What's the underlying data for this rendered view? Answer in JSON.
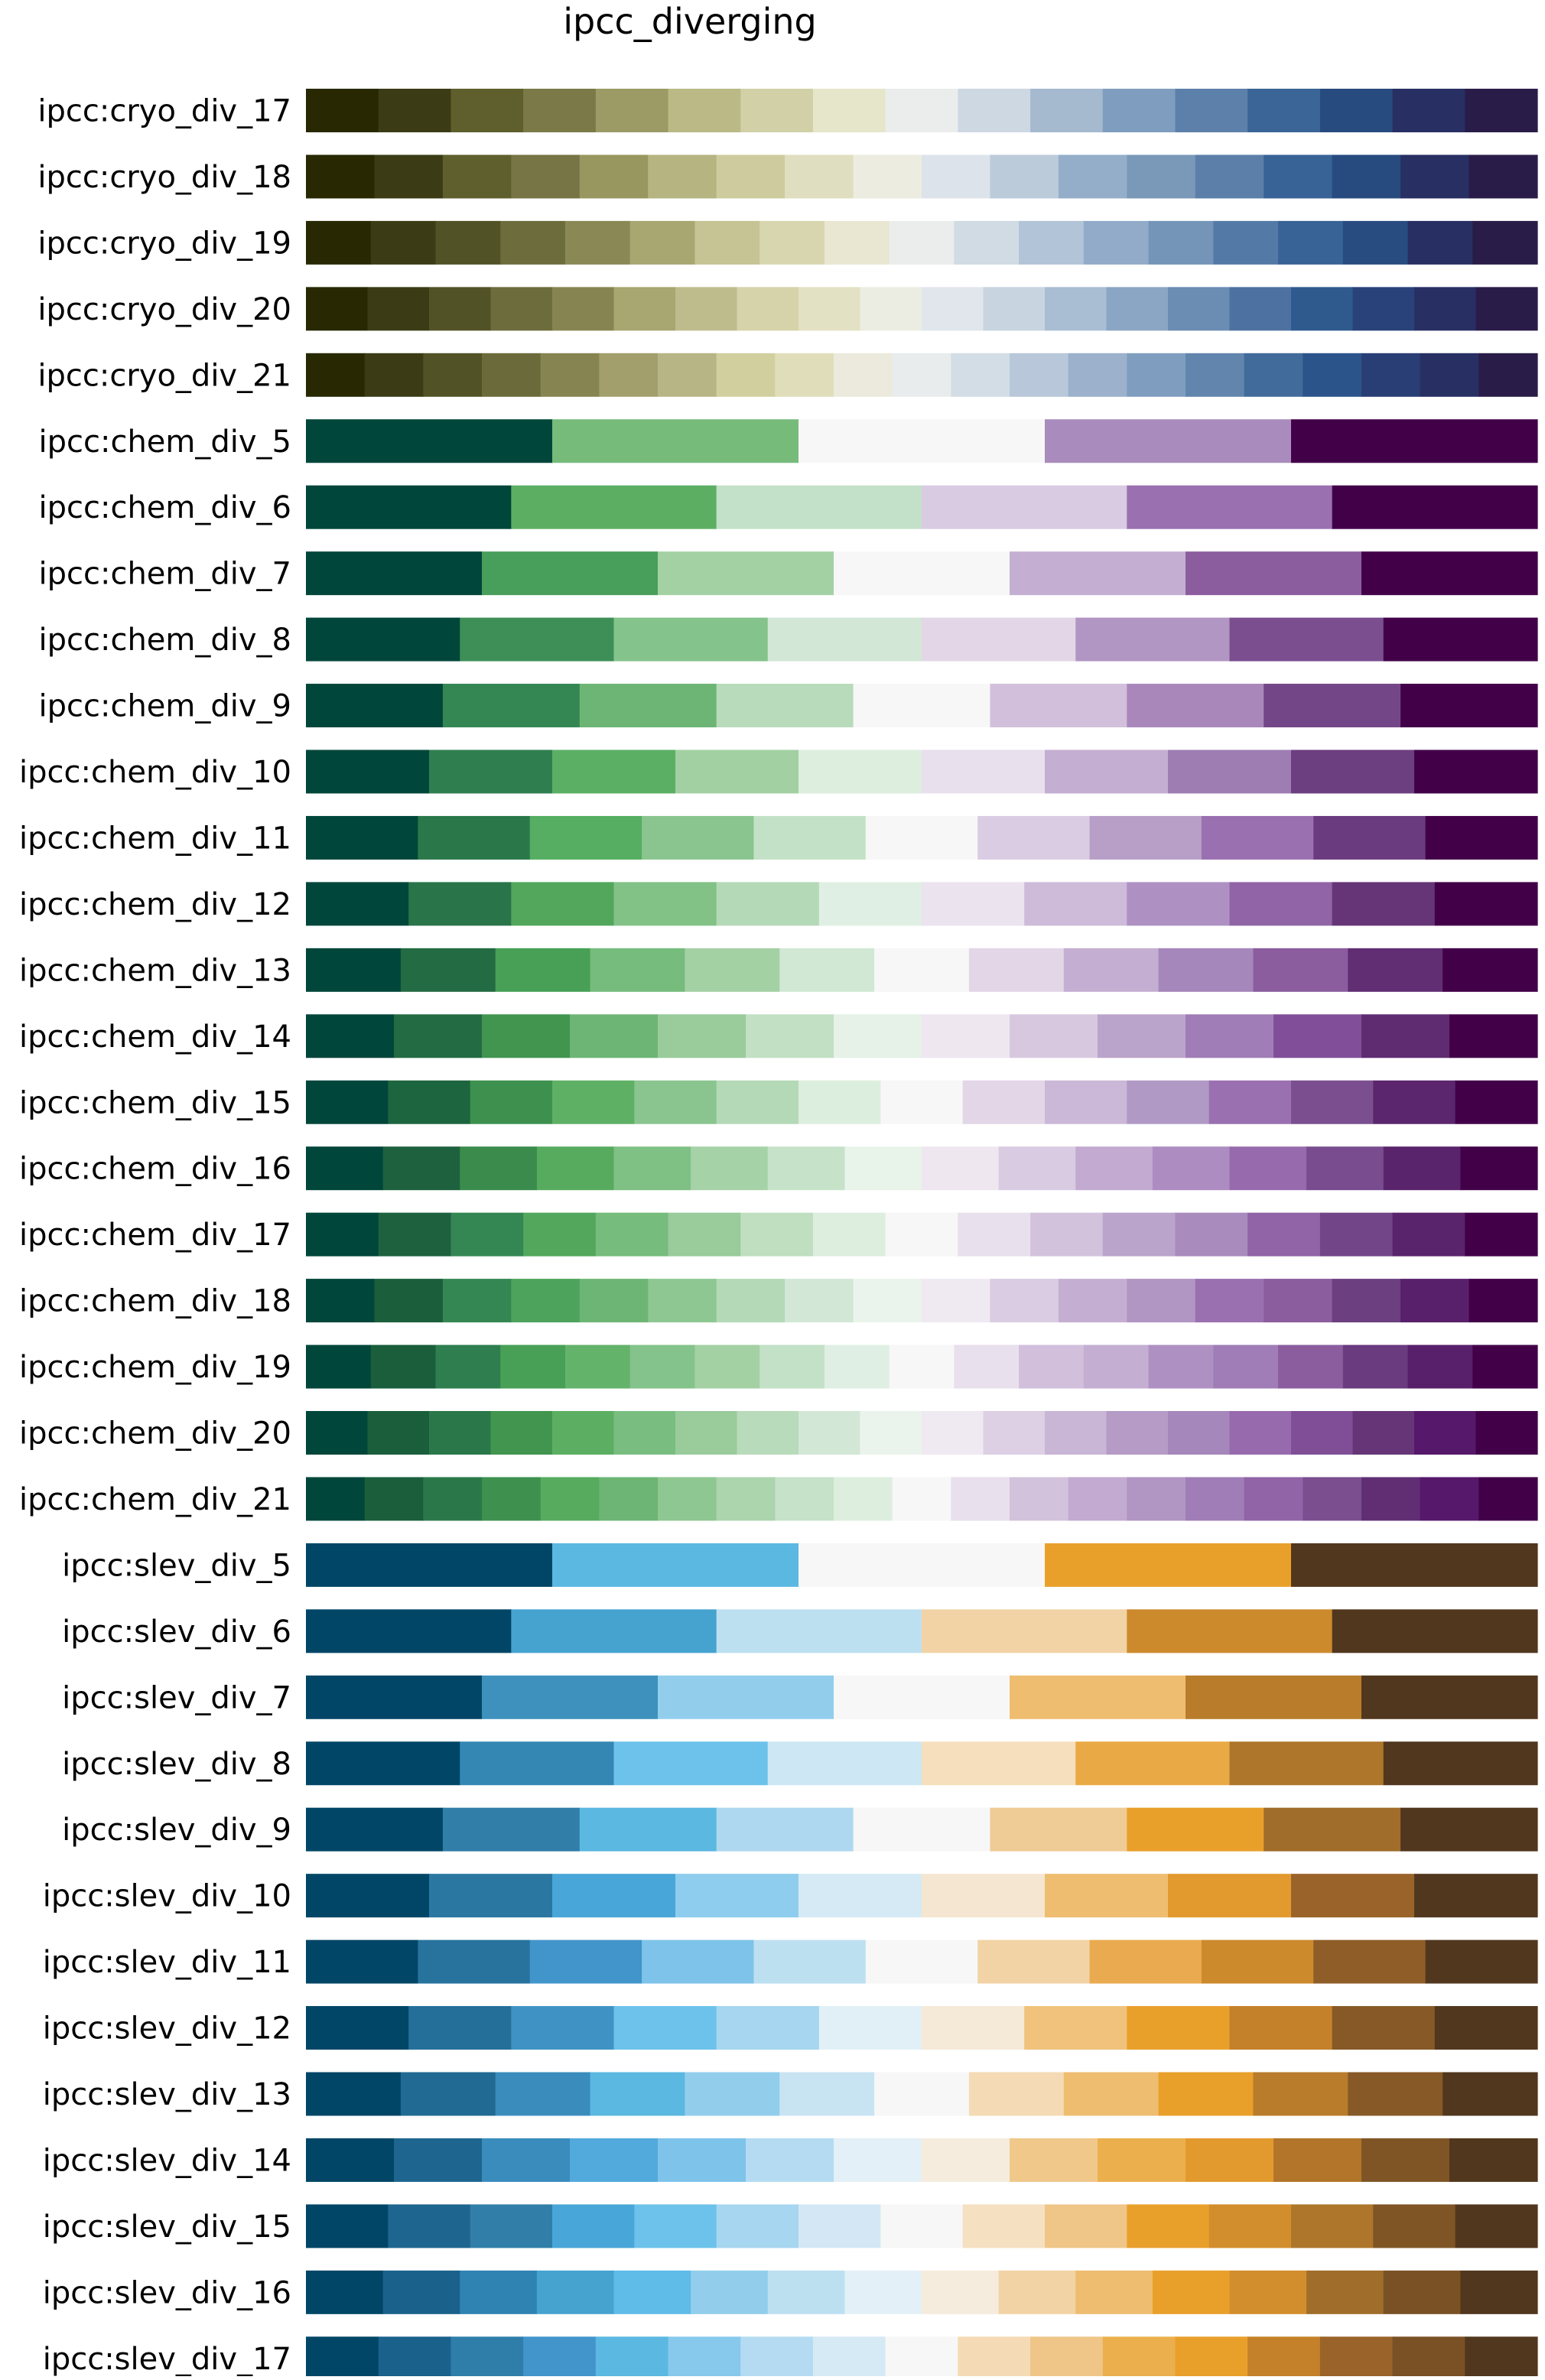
{
  "chart_data": {
    "type": "table",
    "title": "ipcc_diverging",
    "palettes": [
      {
        "name": "ipcc:cryo_div_17",
        "colors": [
          "#282902",
          "#3b3c15",
          "#5f5f2d",
          "#7b7947",
          "#9c9b66",
          "#bbb986",
          "#d2d0a7",
          "#e6e6cb",
          "#eaedec",
          "#cdd8e3",
          "#a5b9cf",
          "#7f9ebf",
          "#5c80a9",
          "#3a6596",
          "#284b7f",
          "#282f63",
          "#2a1c48"
        ]
      },
      {
        "name": "ipcc:cryo_div_18",
        "colors": [
          "#282902",
          "#3b3c15",
          "#5f5f2d",
          "#777445",
          "#999760",
          "#b6b481",
          "#cecc9f",
          "#e0dec0",
          "#ecede0",
          "#dde3ea",
          "#bccbda",
          "#94aec9",
          "#7a99b9",
          "#5b7fa8",
          "#386396",
          "#284b7f",
          "#282f63",
          "#2a1c48"
        ]
      },
      {
        "name": "ipcc:cryo_div_19",
        "colors": [
          "#282902",
          "#3b3c15",
          "#525227",
          "#6d6c3c",
          "#8a8956",
          "#a8a671",
          "#c6c394",
          "#d8d6ae",
          "#e9e7d1",
          "#eaedec",
          "#d0dbe4",
          "#b2c4d7",
          "#91abc8",
          "#7595b8",
          "#537aa6",
          "#386396",
          "#294c80",
          "#282f63",
          "#2a1c48"
        ]
      },
      {
        "name": "ipcc:cryo_div_20",
        "colors": [
          "#282902",
          "#3b3c15",
          "#525227",
          "#6d6c3c",
          "#868552",
          "#a8a671",
          "#bebc8c",
          "#d6d3aa",
          "#e3e1c3",
          "#ebede3",
          "#e1e6ec",
          "#c8d4e0",
          "#a9bdd3",
          "#8ba6c4",
          "#6b8cb3",
          "#4d72a2",
          "#2f5a8e",
          "#294279",
          "#282f63",
          "#2a1c48"
        ]
      },
      {
        "name": "ipcc:cryo_div_21",
        "colors": [
          "#282902",
          "#3b3c15",
          "#525227",
          "#6b6a3a",
          "#868552",
          "#a29f6c",
          "#b7b585",
          "#d2cf9f",
          "#e0deba",
          "#ebeadc",
          "#e9ecec",
          "#d3dde5",
          "#b8c8da",
          "#9bb1cc",
          "#7f9ebf",
          "#6285ad",
          "#416b9a",
          "#2b548b",
          "#293e74",
          "#282f63",
          "#2a1c48"
        ]
      },
      {
        "name": "ipcc:chem_div_5",
        "colors": [
          "#00463a",
          "#77bb7b",
          "#f7f7f7",
          "#a98bbd",
          "#420049"
        ]
      },
      {
        "name": "ipcc:chem_div_6",
        "colors": [
          "#00463a",
          "#5caf62",
          "#c3e0c8",
          "#d9cbe1",
          "#9a70b0",
          "#420049"
        ]
      },
      {
        "name": "ipcc:chem_div_7",
        "colors": [
          "#00463a",
          "#489e5b",
          "#a4d1a4",
          "#f7f7f7",
          "#c4afd2",
          "#8b5d9e",
          "#420049"
        ]
      },
      {
        "name": "ipcc:chem_div_8",
        "colors": [
          "#00463a",
          "#3d8f57",
          "#84c38b",
          "#d3e7d6",
          "#e3d7e7",
          "#b195c2",
          "#7a4e8f",
          "#420049"
        ]
      },
      {
        "name": "ipcc:chem_div_9",
        "colors": [
          "#00463a",
          "#348653",
          "#6cb574",
          "#b8dbbb",
          "#f7f7f7",
          "#d2bfdb",
          "#a987bb",
          "#734787",
          "#420049"
        ]
      },
      {
        "name": "ipcc:chem_div_10",
        "colors": [
          "#00463a",
          "#2f7e4f",
          "#5baf64",
          "#a2d0a2",
          "#ddeedf",
          "#e8e0ec",
          "#c4aed2",
          "#9e7db3",
          "#6c3f80",
          "#420049"
        ]
      },
      {
        "name": "ipcc:chem_div_11",
        "colors": [
          "#00463a",
          "#2a784a",
          "#55ae61",
          "#8ac58f",
          "#c3e1c6",
          "#f7f7f7",
          "#dacce2",
          "#b79fc8",
          "#9a70b0",
          "#6a3b7e",
          "#420049"
        ]
      },
      {
        "name": "ipcc:chem_div_12",
        "colors": [
          "#00463a",
          "#297449",
          "#52a75c",
          "#82c287",
          "#b4d9b7",
          "#e0efe3",
          "#ebe3ee",
          "#cdbbd9",
          "#ae91c2",
          "#9064a6",
          "#653577",
          "#420049"
        ]
      },
      {
        "name": "ipcc:chem_div_13",
        "colors": [
          "#00463a",
          "#236b43",
          "#47a056",
          "#76bc7c",
          "#a4d1a4",
          "#d1e8d4",
          "#f7f7f7",
          "#e2d6e7",
          "#c4afd2",
          "#a587bb",
          "#8b5d9e",
          "#612e74",
          "#420049"
        ]
      },
      {
        "name": "ipcc:chem_div_14",
        "colors": [
          "#00463a",
          "#236b43",
          "#41954f",
          "#6db575",
          "#99cb9b",
          "#c2e0c3",
          "#e6f2e8",
          "#eee7f0",
          "#d7c8df",
          "#bba4cb",
          "#a07db6",
          "#814f99",
          "#5f2b71",
          "#420049"
        ]
      },
      {
        "name": "ipcc:chem_div_15",
        "colors": [
          "#00463a",
          "#1d653f",
          "#3d904e",
          "#5eb064",
          "#8ac58f",
          "#b4d9b7",
          "#dceedd",
          "#f7f7f7",
          "#e2d6e7",
          "#cbb7d7",
          "#b199c5",
          "#9a70b0",
          "#7a4e8f",
          "#5b266d",
          "#420049"
        ]
      },
      {
        "name": "ipcc:chem_div_16",
        "colors": [
          "#00463a",
          "#1d613e",
          "#3a8b4c",
          "#57ab5f",
          "#7fc185",
          "#a6d2a8",
          "#c6e2c9",
          "#e8f3ea",
          "#eee7f0",
          "#d9cbe1",
          "#c2aad1",
          "#ac8cc1",
          "#976aad",
          "#784c8e",
          "#5a246c",
          "#420049"
        ]
      },
      {
        "name": "ipcc:chem_div_17",
        "colors": [
          "#00463a",
          "#1d613e",
          "#348653",
          "#52a75c",
          "#76bc7c",
          "#99cb9b",
          "#bfdfc0",
          "#ddeedf",
          "#f7f7f7",
          "#e8e0ec",
          "#d3c2dc",
          "#bba4cb",
          "#a98bbd",
          "#9064a6",
          "#714587",
          "#5a246c",
          "#420049"
        ]
      },
      {
        "name": "ipcc:chem_div_18",
        "colors": [
          "#00463a",
          "#1a5e3b",
          "#348653",
          "#4da35b",
          "#6db575",
          "#8ec791",
          "#b4d9b7",
          "#d3e7d6",
          "#ebf4ec",
          "#efe9f1",
          "#dacce2",
          "#c4afd2",
          "#b195c2",
          "#9a70b0",
          "#8b5d9e",
          "#6c3f80",
          "#58206a",
          "#420049"
        ]
      },
      {
        "name": "ipcc:chem_div_19",
        "colors": [
          "#00463a",
          "#1a5e3b",
          "#2f7e4f",
          "#47a056",
          "#64b36b",
          "#84c38b",
          "#a4d1a4",
          "#c3e1c6",
          "#e0efe3",
          "#f7f7f7",
          "#e8e0ec",
          "#d2bfdb",
          "#c4aed2",
          "#ae91c2",
          "#a07db6",
          "#8b5d9e",
          "#6a3b7e",
          "#58206a",
          "#420049"
        ]
      },
      {
        "name": "ipcc:chem_div_20",
        "colors": [
          "#00463a",
          "#1a5e3b",
          "#2a784a",
          "#41954f",
          "#5caf62",
          "#79be80",
          "#99cb9b",
          "#b8dbbb",
          "#d3e7d6",
          "#ebf4ec",
          "#efe9f1",
          "#ddcfe4",
          "#c9b5d6",
          "#b59bc6",
          "#a587bb",
          "#976aad",
          "#7f4e97",
          "#653577",
          "#55186a",
          "#420049"
        ]
      },
      {
        "name": "ipcc:chem_div_21",
        "colors": [
          "#00463a",
          "#1a5e3b",
          "#2a784a",
          "#3d904e",
          "#57ab5f",
          "#6db575",
          "#8ec791",
          "#acd4ad",
          "#c6e2c9",
          "#ddeedf",
          "#f7f7f7",
          "#e8e0ec",
          "#d3c2dc",
          "#c2aad1",
          "#b195c2",
          "#a07db6",
          "#9064a6",
          "#7a4e8f",
          "#612e74",
          "#55186a",
          "#420049"
        ]
      },
      {
        "name": "ipcc:slev_div_5",
        "colors": [
          "#014667",
          "#5bb8e1",
          "#f7f7f7",
          "#e9a02b",
          "#51371e"
        ]
      },
      {
        "name": "ipcc:slev_div_6",
        "colors": [
          "#014667",
          "#46a3d0",
          "#bde0f1",
          "#f2d3a5",
          "#cc8a2d",
          "#51371e"
        ]
      },
      {
        "name": "ipcc:slev_div_7",
        "colors": [
          "#014667",
          "#3e91bd",
          "#92ceec",
          "#f7f7f7",
          "#efbd70",
          "#b87c2a",
          "#51371e"
        ]
      },
      {
        "name": "ipcc:slev_div_8",
        "colors": [
          "#014667",
          "#3587b3",
          "#6cc2ea",
          "#cde7f4",
          "#f5dfbc",
          "#e9aa45",
          "#ad762b",
          "#51371e"
        ]
      },
      {
        "name": "ipcc:slev_div_9",
        "colors": [
          "#014667",
          "#317ea9",
          "#5bb8e1",
          "#aed8ef",
          "#f7f7f7",
          "#efcb95",
          "#e9a02b",
          "#a06d2a",
          "#51371e"
        ]
      },
      {
        "name": "ipcc:slev_div_10",
        "colors": [
          "#014667",
          "#2a77a2",
          "#49a6d8",
          "#8ecdee",
          "#d6eaf5",
          "#f4e6d0",
          "#efbd70",
          "#e29a2e",
          "#9a6329",
          "#51371e"
        ]
      },
      {
        "name": "ipcc:slev_div_11",
        "colors": [
          "#014667",
          "#27739e",
          "#4295cb",
          "#7ec3ea",
          "#bde0f1",
          "#f7f7f7",
          "#f2d3a5",
          "#eaaa50",
          "#cc8a2d",
          "#8f5d28",
          "#51371e"
        ]
      },
      {
        "name": "ipcc:slev_div_12",
        "colors": [
          "#014667",
          "#246f9a",
          "#3f93c4",
          "#6cc2ea",
          "#a6d6f0",
          "#e1f0f7",
          "#f5e9d7",
          "#f0c27c",
          "#e9a02b",
          "#c48129",
          "#865926",
          "#51371e"
        ]
      },
      {
        "name": "ipcc:slev_div_13",
        "colors": [
          "#014667",
          "#206a93",
          "#3a8cbd",
          "#5bb8e1",
          "#92ceec",
          "#c8e4f3",
          "#f7f7f7",
          "#f4dbb5",
          "#efbd70",
          "#e9a02b",
          "#b87c2a",
          "#865926",
          "#51371e"
        ]
      },
      {
        "name": "ipcc:slev_div_14",
        "colors": [
          "#014667",
          "#1e668f",
          "#3a8cbd",
          "#52aadc",
          "#7ec3ea",
          "#b4dbf1",
          "#e3f0f7",
          "#f6ecdd",
          "#f0c88a",
          "#ebb04d",
          "#e29a2e",
          "#b27529",
          "#7f5526",
          "#51371e"
        ]
      },
      {
        "name": "ipcc:slev_div_15",
        "colors": [
          "#014667",
          "#1e668f",
          "#317ea9",
          "#49a6d8",
          "#6cc2ea",
          "#a6d6f0",
          "#d3e8f4",
          "#f7f7f7",
          "#f5e0c2",
          "#efc688",
          "#e9a02b",
          "#d28e2c",
          "#ad762b",
          "#7f5526",
          "#51371e"
        ]
      },
      {
        "name": "ipcc:slev_div_16",
        "colors": [
          "#014667",
          "#1a618b",
          "#2f83b3",
          "#46a3d0",
          "#5fbbe8",
          "#92ceec",
          "#bde0f1",
          "#e3f0f7",
          "#f6ecdd",
          "#f2d3a5",
          "#efbd70",
          "#e9a02b",
          "#d28e2c",
          "#a06d2a",
          "#7a5125",
          "#51371e"
        ]
      },
      {
        "name": "ipcc:slev_div_17",
        "colors": [
          "#014667",
          "#1a618b",
          "#2f7eaa",
          "#4295cb",
          "#5bb8e1",
          "#87c9ed",
          "#b4dbf1",
          "#d6eaf5",
          "#f7f7f7",
          "#f4dbb5",
          "#efc688",
          "#ebb04d",
          "#e9a02b",
          "#c48129",
          "#9a6329",
          "#7a5125",
          "#51371e"
        ]
      }
    ]
  }
}
